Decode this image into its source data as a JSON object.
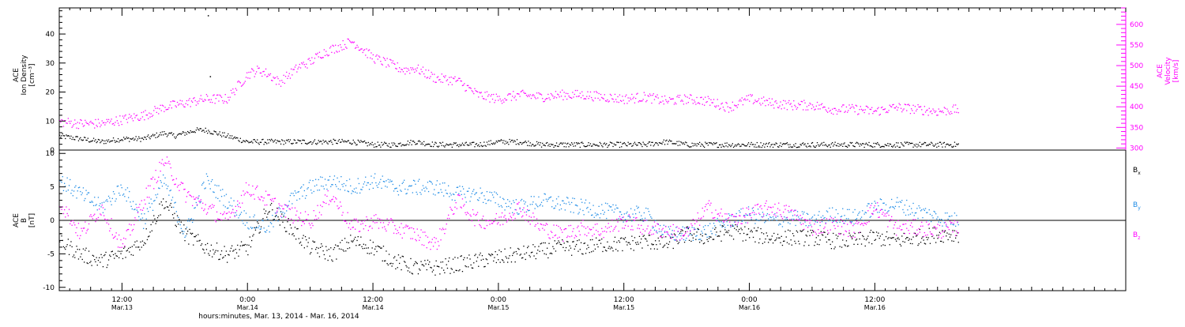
{
  "chart_data": [
    {
      "type": "scatter",
      "panel": "top",
      "ylabel_left": [
        "ACE",
        "Ion Density",
        "[cm⁻³]"
      ],
      "ylabel_right": [
        "ACE",
        "Velocity",
        "[km/s]"
      ],
      "ylim_left": [
        0,
        49
      ],
      "ylim_right": [
        295,
        640
      ],
      "yticks_left": [
        0,
        10,
        20,
        30,
        40
      ],
      "yticks_right": [
        300,
        350,
        400,
        450,
        500,
        550,
        600
      ],
      "grid": false,
      "series": [
        {
          "axis": "left",
          "color": "#000000",
          "x_hours": [
            0,
            2,
            4,
            6,
            8,
            9,
            10,
            11,
            12,
            13,
            14,
            15,
            16,
            17,
            18,
            20,
            22,
            24,
            26,
            28,
            30,
            32,
            34,
            36,
            38,
            40,
            42,
            44,
            46,
            48,
            50,
            52,
            54,
            56,
            58,
            60,
            62,
            64,
            66,
            68,
            70,
            72,
            74,
            76,
            78,
            80,
            82,
            84,
            86
          ],
          "y": [
            5,
            4,
            3,
            4,
            4,
            5,
            6,
            5,
            6,
            7,
            7,
            6,
            5,
            4,
            3,
            3,
            3,
            3,
            3,
            3,
            2,
            2,
            3,
            2,
            2,
            2,
            3,
            3,
            2,
            2,
            2,
            2,
            2,
            2,
            3,
            2,
            2,
            2,
            2,
            2,
            2,
            2,
            2,
            2,
            2,
            2,
            2,
            2,
            2
          ]
        },
        {
          "axis": "right",
          "color": "#ff00ff",
          "x_hours": [
            0,
            2,
            4,
            6,
            8,
            10,
            12,
            14,
            16,
            17,
            18,
            19,
            20,
            21,
            22,
            23,
            24,
            25,
            26,
            27,
            28,
            29,
            30,
            31,
            32,
            33,
            34,
            36,
            38,
            40,
            42,
            44,
            46,
            48,
            50,
            52,
            54,
            56,
            58,
            60,
            62,
            64,
            66,
            68,
            70,
            72,
            74,
            76,
            78,
            80,
            82,
            84,
            86
          ],
          "y": [
            365,
            360,
            360,
            370,
            380,
            400,
            410,
            420,
            420,
            450,
            480,
            490,
            480,
            460,
            480,
            500,
            510,
            530,
            540,
            550,
            560,
            540,
            520,
            510,
            500,
            490,
            495,
            470,
            465,
            430,
            420,
            430,
            425,
            430,
            430,
            425,
            420,
            425,
            415,
            420,
            415,
            400,
            420,
            410,
            405,
            405,
            395,
            395,
            390,
            400,
            395,
            390,
            395
          ]
        }
      ]
    },
    {
      "type": "scatter",
      "panel": "bottom",
      "ylabel": [
        "ACE",
        "B",
        "[nT]"
      ],
      "ylim": [
        -10.5,
        10.5
      ],
      "yticks": [
        -10,
        -5,
        0,
        5,
        10
      ],
      "grid": false,
      "series": [
        {
          "name": "Bₓ",
          "color": "#000000",
          "x_hours": [
            0,
            2,
            4,
            6,
            8,
            10,
            12,
            14,
            16,
            18,
            20,
            22,
            24,
            26,
            28,
            30,
            32,
            34,
            36,
            38,
            40,
            42,
            44,
            46,
            48,
            50,
            52,
            54,
            56,
            58,
            60,
            62,
            64,
            66,
            68,
            70,
            72,
            74,
            76,
            78,
            80,
            82,
            84,
            86
          ],
          "y": [
            -3,
            -5,
            -6,
            -5,
            -3,
            3,
            -2,
            -4,
            -5,
            -4,
            2,
            -1,
            -4,
            -5,
            -3,
            -4,
            -6,
            -7,
            -7,
            -6.5,
            -6,
            -5.5,
            -5,
            -4.5,
            -4,
            -4,
            -3.5,
            -3.5,
            -3,
            -3.5,
            -2,
            -2.5,
            -1.5,
            -2,
            -2.5,
            -2.5,
            -2.5,
            -3,
            -3,
            -2.5,
            -3,
            -2.5,
            -2,
            -2
          ]
        },
        {
          "name": "Bᵧ",
          "color": "#1f8ce6",
          "x_hours": [
            0,
            2,
            4,
            6,
            8,
            10,
            12,
            14,
            16,
            18,
            20,
            22,
            24,
            26,
            28,
            30,
            32,
            34,
            36,
            38,
            40,
            42,
            44,
            46,
            48,
            50,
            52,
            54,
            56,
            58,
            60,
            62,
            64,
            66,
            68,
            70,
            72,
            74,
            76,
            78,
            80,
            82,
            84,
            86
          ],
          "y": [
            6,
            4,
            2,
            5,
            0,
            6,
            -2,
            6,
            3,
            0,
            -1,
            3,
            5,
            6,
            5,
            6,
            5,
            5,
            5,
            4,
            4,
            3,
            2,
            3,
            2.5,
            2,
            1.5,
            1,
            1,
            -2,
            -2,
            -1.5,
            0,
            1,
            0,
            0.5,
            0,
            1,
            0.5,
            2,
            2.5,
            1.5,
            0.5,
            0
          ]
        },
        {
          "name": "B_z",
          "color": "#ff00ff",
          "x_hours": [
            0,
            2,
            4,
            6,
            8,
            10,
            12,
            14,
            16,
            18,
            20,
            22,
            24,
            26,
            28,
            30,
            32,
            34,
            36,
            38,
            40,
            42,
            44,
            46,
            48,
            50,
            52,
            54,
            56,
            58,
            60,
            62,
            64,
            66,
            68,
            70,
            72,
            74,
            76,
            78,
            80,
            82,
            84,
            86
          ],
          "y": [
            3,
            -2,
            2,
            -4,
            3,
            9,
            4,
            2,
            0,
            5,
            3,
            1,
            0,
            4,
            -1,
            0,
            -1,
            -2,
            -3.5,
            3,
            0,
            0,
            2,
            -1,
            -2,
            -1,
            -1.5,
            0,
            -1,
            -1.5,
            -2,
            2,
            0,
            1,
            2,
            1,
            -1,
            -0.5,
            -1.5,
            2,
            -1,
            -1,
            -1.5,
            -1
          ]
        }
      ]
    }
  ],
  "x_axis": {
    "start": "2014-03-13T06:00",
    "range_hours": [
      0,
      102
    ],
    "ticks": [
      {
        "h": 6,
        "time": "12:00",
        "date": "Mar.13"
      },
      {
        "h": 18,
        "time": "0:00",
        "date": "Mar.14"
      },
      {
        "h": 30,
        "time": "12:00",
        "date": "Mar.14"
      },
      {
        "h": 42,
        "time": "0:00",
        "date": "Mar.15"
      },
      {
        "h": 54,
        "time": "12:00",
        "date": "Mar.15"
      },
      {
        "h": 66,
        "time": "0:00",
        "date": "Mar.16"
      },
      {
        "h": 78,
        "time": "12:00",
        "date": "Mar.16"
      }
    ],
    "xlabel": "hours:minutes, Mar. 13, 2014 - Mar. 16, 2014"
  },
  "legend": [
    {
      "label": "B",
      "sub": "x",
      "color": "#000000"
    },
    {
      "label": "B",
      "sub": "y",
      "color": "#1f8ce6"
    },
    {
      "label": "B",
      "sub": "z",
      "color": "#ff00ff"
    }
  ]
}
